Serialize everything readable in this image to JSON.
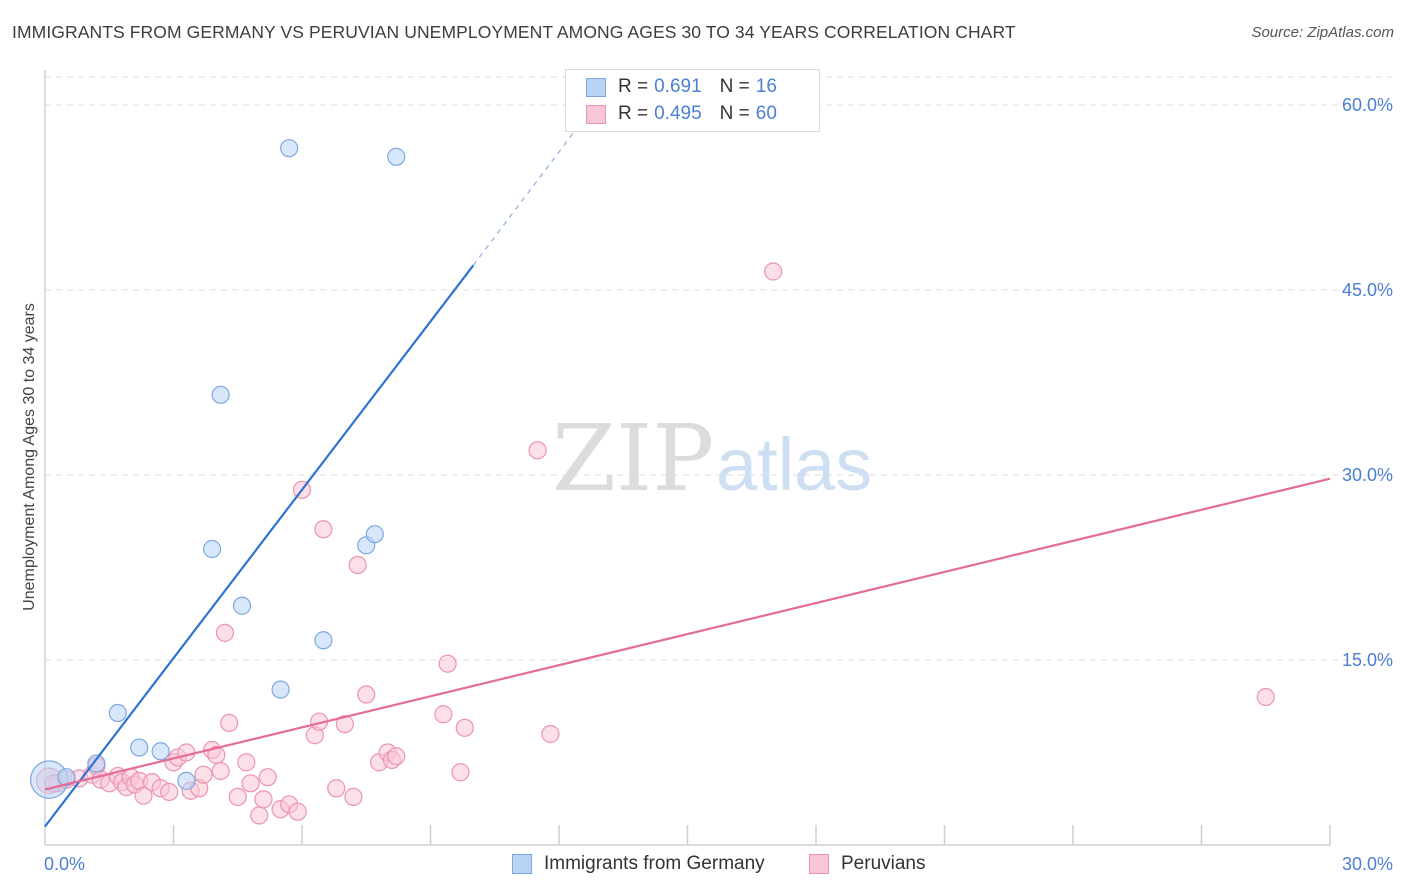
{
  "title": "IMMIGRANTS FROM GERMANY VS PERUVIAN UNEMPLOYMENT AMONG AGES 30 TO 34 YEARS CORRELATION CHART",
  "source": "Source: ZipAtlas.com",
  "watermark": {
    "zip": "ZIP",
    "atlas": "atlas"
  },
  "legend": {
    "r_label": "R =",
    "n_label": "N =",
    "rows": [
      {
        "r": "0.691",
        "n": "16",
        "fill": "#b9d3f5",
        "stroke": "#7ea7e0"
      },
      {
        "r": "0.495",
        "n": "60",
        "fill": "#f9c6d6",
        "stroke": "#ec93b0"
      }
    ]
  },
  "bottom_legend": [
    {
      "label": "Immigrants from Germany",
      "fill": "#b9d3f5",
      "stroke": "#7ea7e0"
    },
    {
      "label": "Peruvians",
      "fill": "#f9c6d6",
      "stroke": "#ec93b0"
    }
  ],
  "chart_data": {
    "type": "scatter",
    "title": "IMMIGRANTS FROM GERMANY VS PERUVIAN UNEMPLOYMENT AMONG AGES 30 TO 34 YEARS CORRELATION CHART",
    "xlabel": "",
    "ylabel": "Unemployment Among Ages 30 to 34 years",
    "xlim": [
      0,
      30
    ],
    "ylim": [
      0,
      63
    ],
    "x_tick_labels": [
      "0.0%",
      "30.0%"
    ],
    "y_ticks": [
      15,
      30,
      45,
      60
    ],
    "y_tick_labels": [
      "15.0%",
      "30.0%",
      "45.0%",
      "60.0%"
    ],
    "grid": true,
    "colors": {
      "germany_fill": "#b9d3f5",
      "germany_stroke": "#7ea7e0",
      "germany_line": "#2e73d2",
      "peru_fill": "#f9c6d6",
      "peru_stroke": "#ec93b0",
      "peru_line": "#e36d96",
      "tick_text": "#4a7fd4"
    },
    "series": [
      {
        "name": "Immigrants from Germany",
        "r": 0.691,
        "n": 16,
        "points": [
          [
            0.1,
            5.3,
            2.2
          ],
          [
            0.5,
            5.5,
            1
          ],
          [
            1.2,
            6.6,
            1
          ],
          [
            1.7,
            10.7,
            1
          ],
          [
            2.2,
            7.9,
            1
          ],
          [
            2.7,
            7.6,
            1
          ],
          [
            3.3,
            5.2,
            1
          ],
          [
            4.1,
            36.5,
            1
          ],
          [
            3.9,
            24.0,
            1
          ],
          [
            4.6,
            19.4,
            1
          ],
          [
            5.7,
            56.5,
            1
          ],
          [
            5.5,
            12.6,
            1
          ],
          [
            6.5,
            16.6,
            1
          ],
          [
            7.5,
            24.3,
            1
          ],
          [
            7.7,
            25.2,
            1
          ],
          [
            8.2,
            55.8,
            1
          ]
        ],
        "trend": {
          "x0": 0,
          "y0": 1.5,
          "x1": 10.0,
          "y1": 47.0,
          "dash_x1": 12.5,
          "dash_y1": 58.5
        }
      },
      {
        "name": "Peruvians",
        "r": 0.495,
        "n": 60,
        "points": [
          [
            0.1,
            5.2,
            1.5
          ],
          [
            0.3,
            5.0,
            1
          ],
          [
            0.5,
            5.3,
            1
          ],
          [
            0.8,
            5.4,
            1
          ],
          [
            1.1,
            5.7,
            1
          ],
          [
            1.2,
            6.4,
            1
          ],
          [
            1.3,
            5.3,
            1
          ],
          [
            1.5,
            5.0,
            1
          ],
          [
            1.7,
            5.6,
            1
          ],
          [
            1.8,
            5.1,
            1
          ],
          [
            1.9,
            4.7,
            1
          ],
          [
            2.0,
            5.5,
            1
          ],
          [
            2.1,
            4.9,
            1
          ],
          [
            2.2,
            5.2,
            1
          ],
          [
            2.3,
            4.0,
            1
          ],
          [
            2.5,
            5.1,
            1
          ],
          [
            2.7,
            4.6,
            1
          ],
          [
            2.9,
            4.3,
            1
          ],
          [
            3.0,
            6.7,
            1
          ],
          [
            3.1,
            7.1,
            1
          ],
          [
            3.3,
            7.5,
            1
          ],
          [
            3.4,
            4.4,
            1
          ],
          [
            3.6,
            4.6,
            1
          ],
          [
            3.7,
            5.7,
            1
          ],
          [
            3.9,
            7.7,
            1
          ],
          [
            4.0,
            7.3,
            1
          ],
          [
            4.1,
            6.0,
            1
          ],
          [
            4.2,
            17.2,
            1
          ],
          [
            4.3,
            9.9,
            1
          ],
          [
            4.5,
            3.9,
            1
          ],
          [
            4.7,
            6.7,
            1
          ],
          [
            4.8,
            5.0,
            1
          ],
          [
            5.0,
            2.4,
            1
          ],
          [
            5.1,
            3.7,
            1
          ],
          [
            5.2,
            5.5,
            1
          ],
          [
            5.5,
            2.9,
            1
          ],
          [
            5.7,
            3.3,
            1
          ],
          [
            5.9,
            2.7,
            1
          ],
          [
            6.0,
            28.8,
            1
          ],
          [
            6.3,
            8.9,
            1
          ],
          [
            6.4,
            10.0,
            1
          ],
          [
            6.5,
            25.6,
            1
          ],
          [
            6.8,
            4.6,
            1
          ],
          [
            7.0,
            9.8,
            1
          ],
          [
            7.2,
            3.9,
            1
          ],
          [
            7.3,
            22.7,
            1
          ],
          [
            7.5,
            12.2,
            1
          ],
          [
            7.8,
            6.7,
            1
          ],
          [
            8.0,
            7.5,
            1
          ],
          [
            8.1,
            6.9,
            1
          ],
          [
            8.2,
            7.2,
            1
          ],
          [
            9.3,
            10.6,
            1
          ],
          [
            9.4,
            14.7,
            1
          ],
          [
            9.7,
            5.9,
            1
          ],
          [
            9.8,
            9.5,
            1
          ],
          [
            11.5,
            32.0,
            1
          ],
          [
            11.8,
            9.0,
            1
          ],
          [
            17.0,
            46.5,
            1
          ],
          [
            28.5,
            12.0,
            1
          ],
          [
            0.2,
            5.0,
            1
          ]
        ],
        "trend": {
          "x0": 0,
          "y0": 4.5,
          "x1": 30.0,
          "y1": 29.7
        }
      }
    ]
  }
}
